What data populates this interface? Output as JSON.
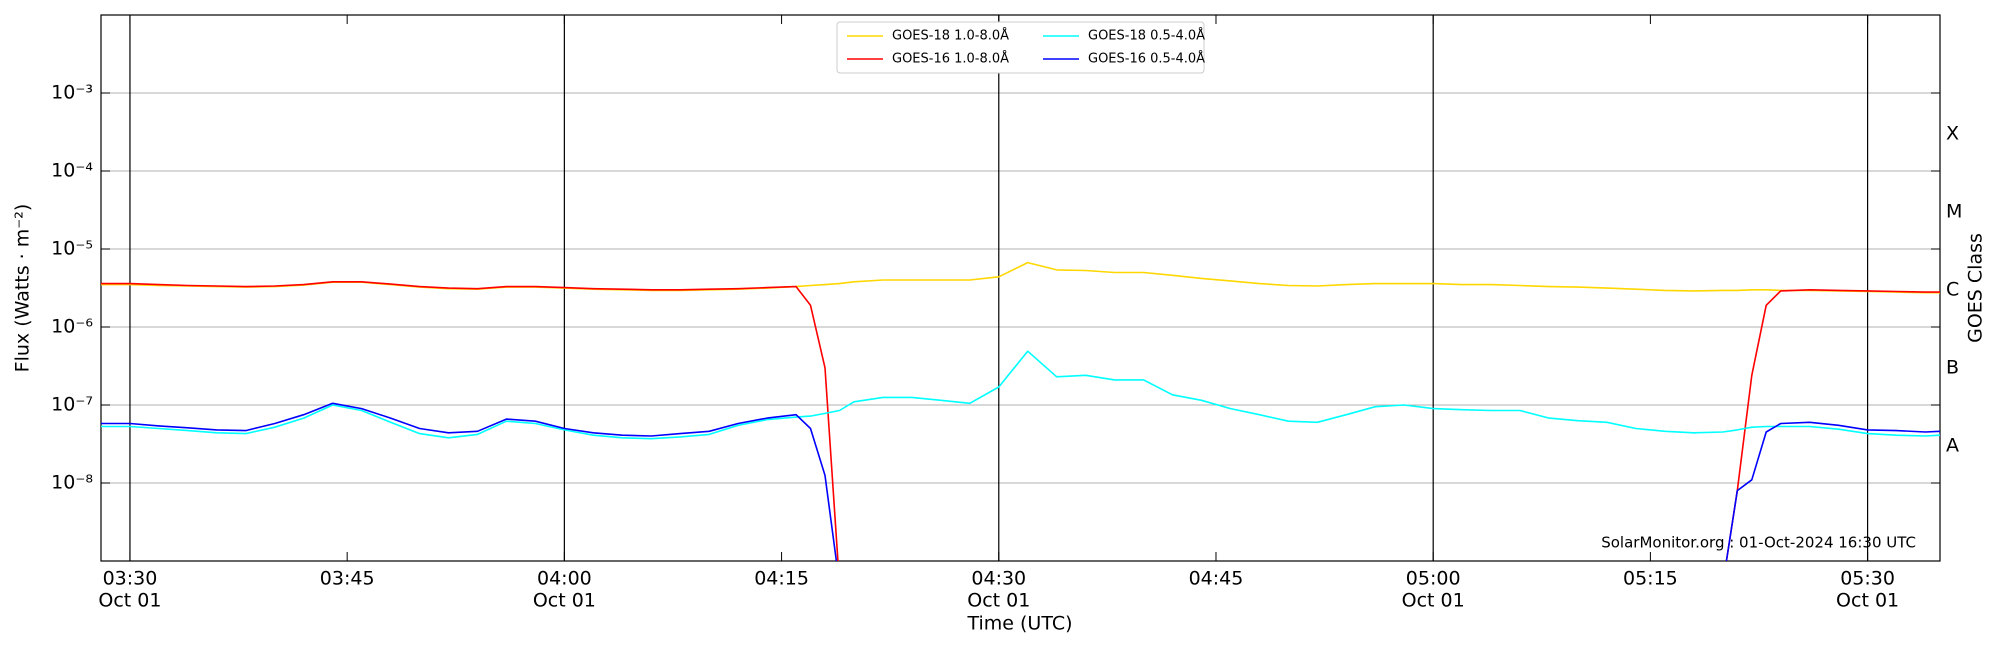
{
  "chart_data": {
    "type": "line",
    "xlabel": "Time (UTC)",
    "ylabel": "Flux (Watts · m⁻²)",
    "y2label": "GOES Class",
    "annotation": "SolarMonitor.org : 01-Oct-2024 16:30 UTC",
    "log_y": true,
    "grid": true,
    "legend": "upper center",
    "xlim": [
      "03:28",
      "05:35"
    ],
    "xticks": [
      "03:30",
      "03:45",
      "04:00",
      "04:15",
      "04:30",
      "04:45",
      "05:00",
      "05:15",
      "05:30"
    ],
    "xtick_dates": [
      "Oct 01",
      null,
      "Oct 01",
      null,
      "Oct 01",
      null,
      "Oct 01",
      null,
      "Oct 01"
    ],
    "ylim": [
      1e-09,
      0.01
    ],
    "yticks": [
      {
        "value": 0.001,
        "label": "10⁻³"
      },
      {
        "value": 0.0001,
        "label": "10⁻⁴"
      },
      {
        "value": 1e-05,
        "label": "10⁻⁵"
      },
      {
        "value": 1e-06,
        "label": "10⁻⁶"
      },
      {
        "value": 1e-07,
        "label": "10⁻⁷"
      },
      {
        "value": 1e-08,
        "label": "10⁻⁸"
      }
    ],
    "y2lim": [
      1e-09,
      0.01
    ],
    "y2ticks": [
      {
        "value": 3e-08,
        "label": "A"
      },
      {
        "value": 3e-07,
        "label": "B"
      },
      {
        "value": 3e-06,
        "label": "C"
      },
      {
        "value": 3e-05,
        "label": "M"
      },
      {
        "value": 0.0003,
        "label": "X"
      }
    ],
    "x": [
      "03:28",
      "03:30",
      "03:32",
      "03:34",
      "03:36",
      "03:38",
      "03:40",
      "03:42",
      "03:44",
      "03:46",
      "03:48",
      "03:50",
      "03:52",
      "03:54",
      "03:56",
      "03:58",
      "04:00",
      "04:02",
      "04:04",
      "04:06",
      "04:08",
      "04:10",
      "04:12",
      "04:14",
      "04:16",
      "04:17",
      "04:18",
      "04:19",
      "04:20",
      "04:22",
      "04:24",
      "04:26",
      "04:28",
      "04:30",
      "04:32",
      "04:34",
      "04:36",
      "04:38",
      "04:40",
      "04:42",
      "04:44",
      "04:46",
      "04:48",
      "04:50",
      "04:52",
      "04:54",
      "04:56",
      "04:58",
      "05:00",
      "05:02",
      "05:04",
      "05:06",
      "05:08",
      "05:10",
      "05:12",
      "05:14",
      "05:16",
      "05:18",
      "05:20",
      "05:21",
      "05:22",
      "05:23",
      "05:24",
      "05:26",
      "05:28",
      "05:30",
      "05:32",
      "05:34",
      "05:35"
    ],
    "series": [
      {
        "name": "GOES-18 1.0-8.0Å",
        "color": "#ffd700",
        "values": [
          3.5e-06,
          3.5e-06,
          3.4e-06,
          3.35e-06,
          3.3e-06,
          3.25e-06,
          3.3e-06,
          3.45e-06,
          3.75e-06,
          3.75e-06,
          3.5e-06,
          3.25e-06,
          3.1e-06,
          3.05e-06,
          3.25e-06,
          3.25e-06,
          3.15e-06,
          3.05e-06,
          3e-06,
          2.95e-06,
          2.95e-06,
          3e-06,
          3.05e-06,
          3.15e-06,
          3.3e-06,
          3.4e-06,
          3.5e-06,
          3.6e-06,
          3.8e-06,
          4e-06,
          4e-06,
          4e-06,
          4e-06,
          4.4e-06,
          6.7e-06,
          5.4e-06,
          5.3e-06,
          5e-06,
          5e-06,
          4.6e-06,
          4.2e-06,
          3.9e-06,
          3.6e-06,
          3.4e-06,
          3.35e-06,
          3.5e-06,
          3.6e-06,
          3.6e-06,
          3.6e-06,
          3.5e-06,
          3.5e-06,
          3.4e-06,
          3.3e-06,
          3.25e-06,
          3.15e-06,
          3.05e-06,
          2.95e-06,
          2.9e-06,
          2.95e-06,
          2.95e-06,
          3e-06,
          3e-06,
          2.95e-06,
          2.95e-06,
          2.9e-06,
          2.85e-06,
          2.8e-06,
          2.75e-06,
          2.75e-06
        ]
      },
      {
        "name": "GOES-16 1.0-8.0Å",
        "color": "#ff0000",
        "values": [
          3.6e-06,
          3.6e-06,
          3.5e-06,
          3.4e-06,
          3.35e-06,
          3.3e-06,
          3.35e-06,
          3.5e-06,
          3.8e-06,
          3.8e-06,
          3.55e-06,
          3.3e-06,
          3.15e-06,
          3.1e-06,
          3.3e-06,
          3.3e-06,
          3.2e-06,
          3.1e-06,
          3.05e-06,
          3e-06,
          3e-06,
          3.05e-06,
          3.1e-06,
          3.2e-06,
          3.3e-06,
          1.9e-06,
          3e-07,
          5e-10,
          null,
          null,
          null,
          null,
          null,
          null,
          null,
          null,
          null,
          null,
          null,
          null,
          null,
          null,
          null,
          null,
          null,
          null,
          null,
          null,
          null,
          null,
          null,
          null,
          null,
          null,
          null,
          null,
          null,
          null,
          5e-10,
          8e-09,
          2.4e-07,
          1.9e-06,
          2.9e-06,
          3e-06,
          2.95e-06,
          2.9e-06,
          2.85e-06,
          2.8e-06,
          2.8e-06
        ]
      },
      {
        "name": "GOES-18 0.5-4.0Å",
        "color": "#00ffff",
        "values": [
          5.3e-08,
          5.3e-08,
          5e-08,
          4.7e-08,
          4.4e-08,
          4.3e-08,
          5.2e-08,
          6.8e-08,
          1e-07,
          8.5e-08,
          6e-08,
          4.3e-08,
          3.8e-08,
          4.2e-08,
          6.2e-08,
          5.8e-08,
          4.8e-08,
          4.1e-08,
          3.8e-08,
          3.7e-08,
          3.9e-08,
          4.2e-08,
          5.5e-08,
          6.5e-08,
          7e-08,
          7.2e-08,
          7.8e-08,
          8.5e-08,
          1.1e-07,
          1.25e-07,
          1.25e-07,
          1.15e-07,
          1.05e-07,
          1.7e-07,
          4.9e-07,
          2.3e-07,
          2.4e-07,
          2.1e-07,
          2.1e-07,
          1.35e-07,
          1.15e-07,
          9e-08,
          7.5e-08,
          6.2e-08,
          6e-08,
          7.5e-08,
          9.5e-08,
          1e-07,
          9e-08,
          8.7e-08,
          8.5e-08,
          8.5e-08,
          6.8e-08,
          6.3e-08,
          6e-08,
          5e-08,
          4.6e-08,
          4.4e-08,
          4.5e-08,
          4.8e-08,
          5.2e-08,
          5.3e-08,
          5.3e-08,
          5.3e-08,
          4.9e-08,
          4.3e-08,
          4.1e-08,
          4e-08,
          4.1e-08
        ]
      },
      {
        "name": "GOES-16 0.5-4.0Å",
        "color": "#0000ff",
        "values": [
          5.8e-08,
          5.8e-08,
          5.4e-08,
          5.1e-08,
          4.8e-08,
          4.7e-08,
          5.8e-08,
          7.5e-08,
          1.05e-07,
          9e-08,
          6.8e-08,
          5e-08,
          4.4e-08,
          4.6e-08,
          6.6e-08,
          6.2e-08,
          5e-08,
          4.4e-08,
          4.1e-08,
          4e-08,
          4.3e-08,
          4.6e-08,
          5.8e-08,
          6.8e-08,
          7.5e-08,
          5e-08,
          1.25e-08,
          5e-10,
          null,
          null,
          null,
          null,
          null,
          null,
          null,
          null,
          null,
          null,
          null,
          null,
          null,
          null,
          null,
          null,
          null,
          null,
          null,
          null,
          null,
          null,
          null,
          null,
          null,
          null,
          null,
          null,
          null,
          null,
          5e-10,
          8e-09,
          1.1e-08,
          4.5e-08,
          5.8e-08,
          6e-08,
          5.5e-08,
          4.8e-08,
          4.7e-08,
          4.5e-08,
          4.6e-08
        ]
      }
    ]
  }
}
